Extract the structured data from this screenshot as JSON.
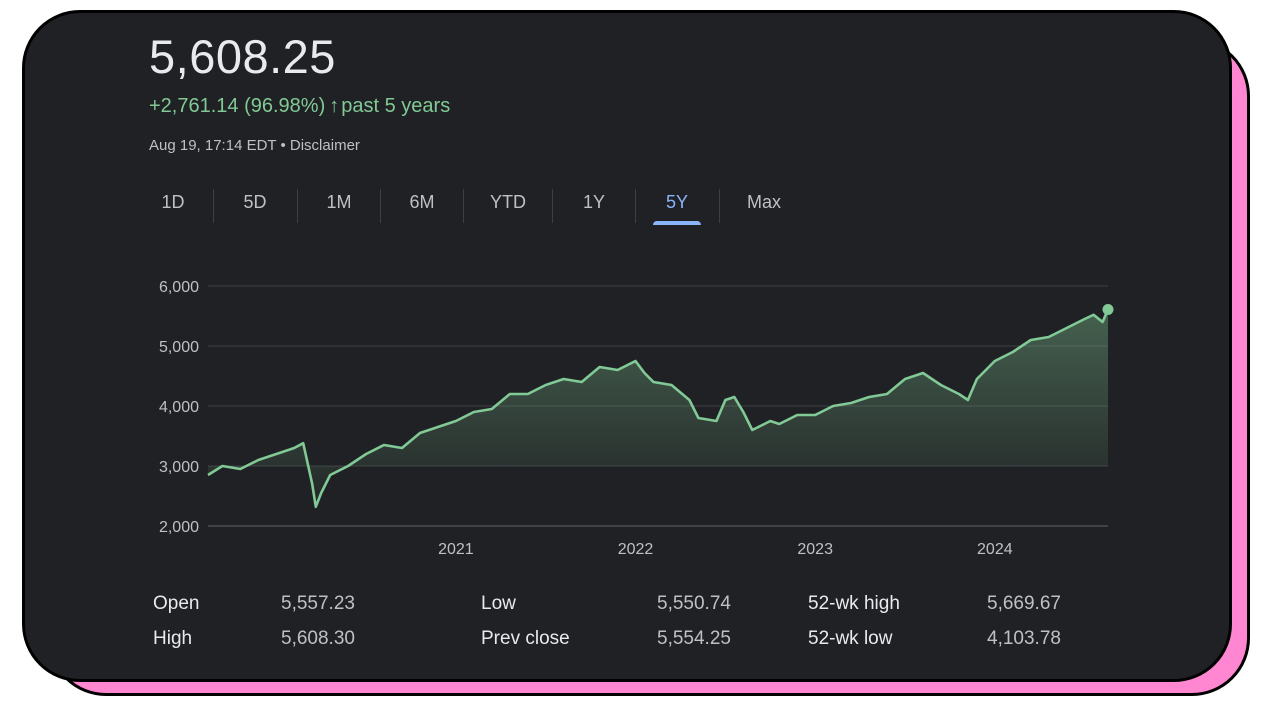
{
  "quote": {
    "price": "5,608.25",
    "change": "+2,761.14 (96.98%)",
    "change_arrow": "↑",
    "period_label": "past 5 years",
    "timestamp": "Aug 19, 17:14 EDT • Disclaimer",
    "accent_color": "#81c995"
  },
  "tabs": [
    {
      "label": "1D",
      "active": false
    },
    {
      "label": "5D",
      "active": false
    },
    {
      "label": "1M",
      "active": false
    },
    {
      "label": "6M",
      "active": false
    },
    {
      "label": "YTD",
      "active": false
    },
    {
      "label": "1Y",
      "active": false
    },
    {
      "label": "5Y",
      "active": true
    },
    {
      "label": "Max",
      "active": false
    }
  ],
  "chart_data": {
    "type": "area",
    "y_ticks": [
      "6,000",
      "5,000",
      "4,000",
      "3,000",
      "2,000"
    ],
    "ylim": [
      2000,
      6000
    ],
    "baseline": 3000,
    "xlim": [
      2019.62,
      2024.63
    ],
    "x_ticks": [
      "2021",
      "2022",
      "2023",
      "2024"
    ],
    "x_tick_values": [
      2021,
      2022,
      2023,
      2024
    ],
    "grid": true,
    "line_color": "#81c995",
    "series": [
      {
        "x": [
          2019.62,
          2019.7,
          2019.8,
          2019.9,
          2020.0,
          2020.1,
          2020.15,
          2020.2,
          2020.22,
          2020.25,
          2020.3,
          2020.4,
          2020.5,
          2020.6,
          2020.7,
          2020.8,
          2020.9,
          2021.0,
          2021.1,
          2021.2,
          2021.3,
          2021.4,
          2021.5,
          2021.6,
          2021.7,
          2021.8,
          2021.9,
          2022.0,
          2022.05,
          2022.1,
          2022.2,
          2022.3,
          2022.35,
          2022.45,
          2022.5,
          2022.55,
          2022.6,
          2022.65,
          2022.75,
          2022.8,
          2022.9,
          2023.0,
          2023.1,
          2023.2,
          2023.3,
          2023.4,
          2023.5,
          2023.6,
          2023.7,
          2023.8,
          2023.85,
          2023.9,
          2024.0,
          2024.1,
          2024.2,
          2024.3,
          2024.4,
          2024.5,
          2024.55,
          2024.6,
          2024.63
        ],
        "values": [
          2850,
          3000,
          2950,
          3100,
          3200,
          3300,
          3380,
          2700,
          2320,
          2550,
          2850,
          3000,
          3200,
          3350,
          3300,
          3550,
          3650,
          3750,
          3900,
          3950,
          4200,
          4200,
          4350,
          4450,
          4400,
          4650,
          4600,
          4750,
          4550,
          4400,
          4350,
          4100,
          3800,
          3750,
          4100,
          4150,
          3900,
          3600,
          3750,
          3700,
          3850,
          3850,
          4000,
          4050,
          4150,
          4200,
          4450,
          4550,
          4350,
          4200,
          4100,
          4450,
          4750,
          4900,
          5100,
          5150,
          5300,
          5450,
          5520,
          5400,
          5608
        ]
      }
    ],
    "current_value": 5608.25
  },
  "stats": {
    "open_label": "Open",
    "open_value": "5,557.23",
    "high_label": "High",
    "high_value": "5,608.30",
    "low_label": "Low",
    "low_value": "5,550.74",
    "prev_close_label": "Prev close",
    "prev_close_value": "5,554.25",
    "wk52_high_label": "52-wk high",
    "wk52_high_value": "5,669.67",
    "wk52_low_label": "52-wk low",
    "wk52_low_value": "4,103.78"
  }
}
